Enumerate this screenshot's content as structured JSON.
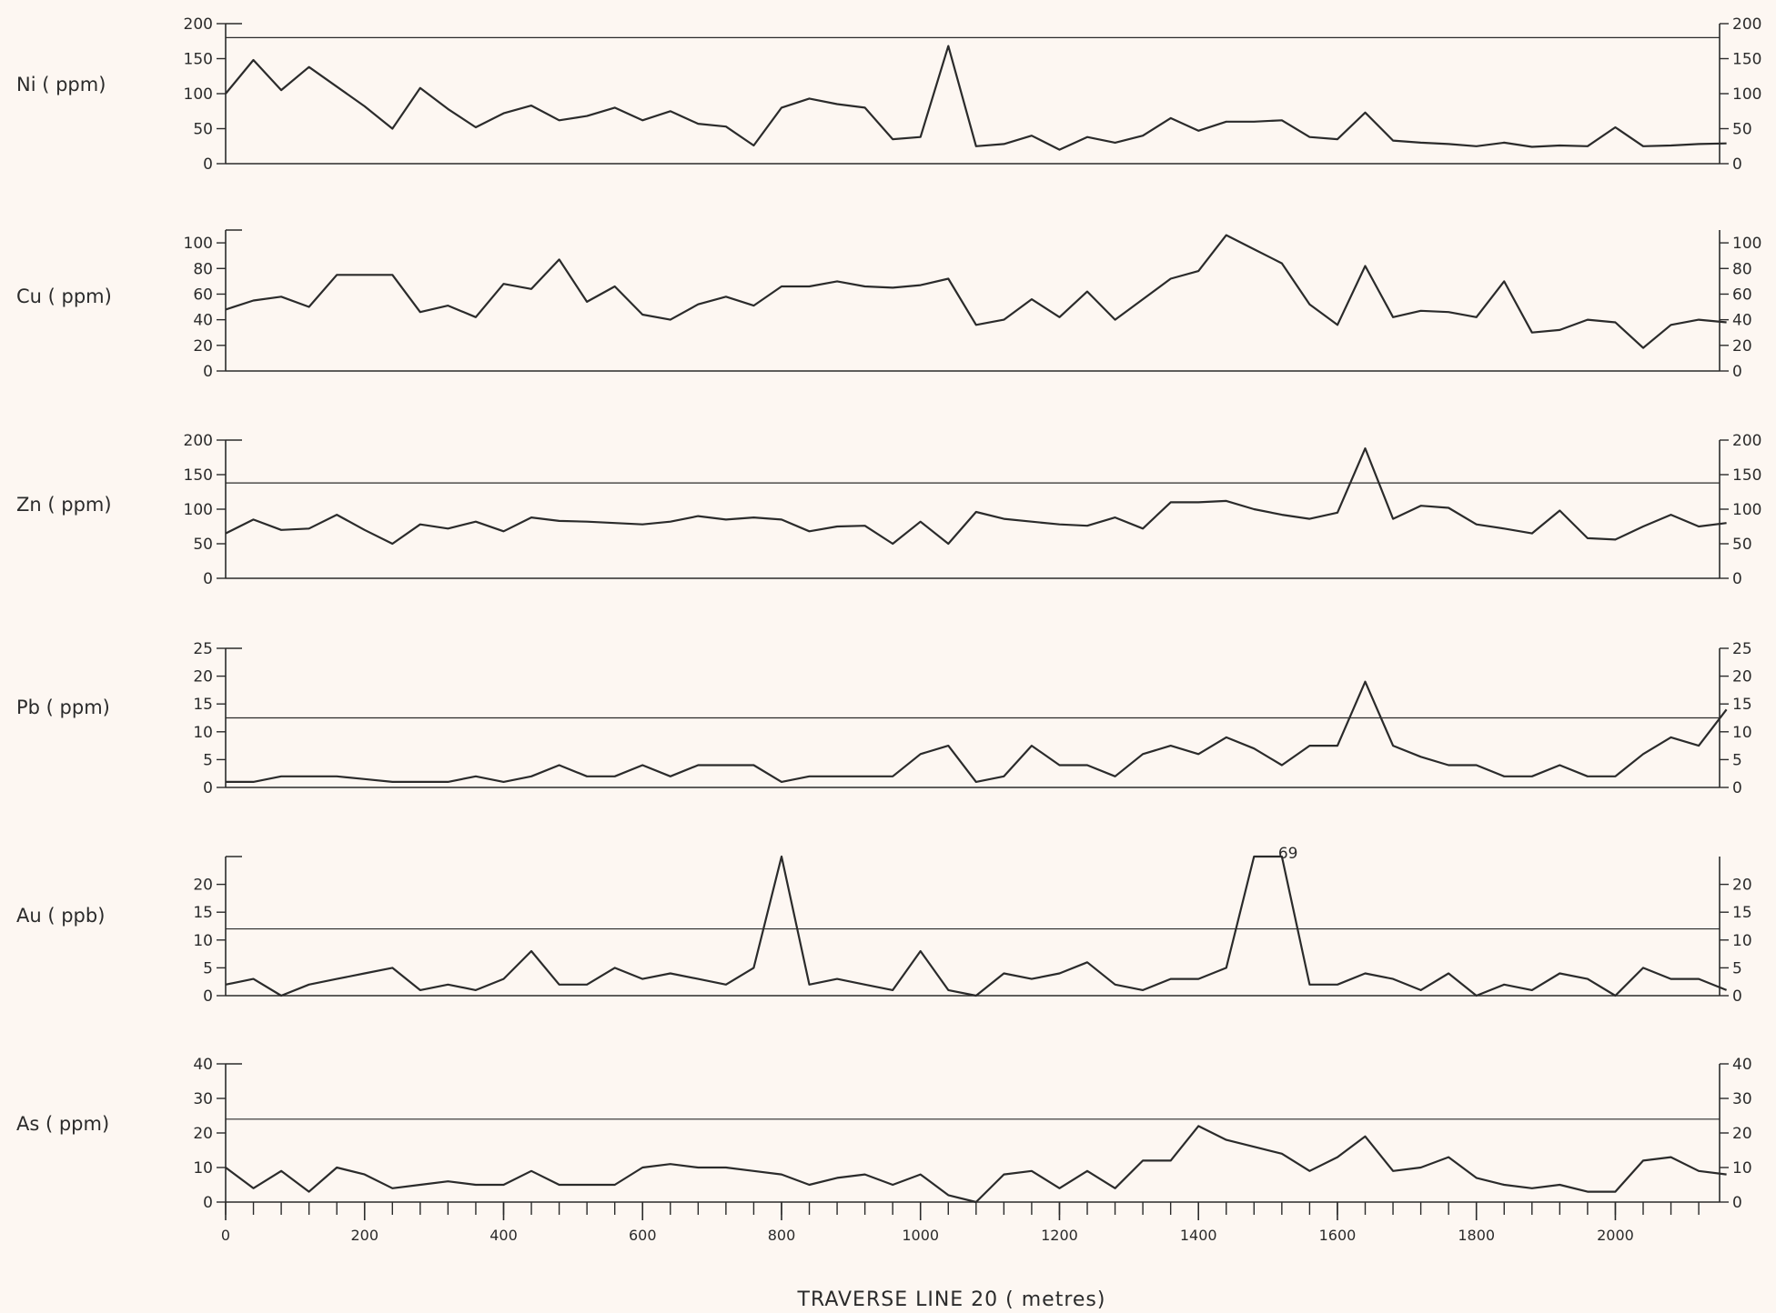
{
  "page": {
    "background": "#fdf7f2",
    "ink": "#2b2b2b"
  },
  "x_axis": {
    "title": "TRAVERSE LINE 20 ( metres)",
    "range": [
      0,
      2150
    ],
    "tick_labels": [
      0,
      200,
      400,
      600,
      800,
      1000,
      1200,
      1400,
      1600,
      1800,
      2000
    ],
    "minor_step": 40
  },
  "chart_data": [
    {
      "type": "line",
      "ylabel": "Ni ( ppm)",
      "ylim": [
        0,
        200
      ],
      "yticks": [
        0,
        50,
        100,
        150,
        200
      ],
      "reference_line": 180,
      "x": [
        0,
        40,
        80,
        120,
        160,
        200,
        240,
        280,
        320,
        360,
        400,
        440,
        480,
        520,
        560,
        600,
        640,
        680,
        720,
        760,
        800,
        840,
        880,
        920,
        960,
        1000,
        1040,
        1080,
        1120,
        1160,
        1200,
        1240,
        1280,
        1320,
        1360,
        1400,
        1440,
        1480,
        1520,
        1560,
        1600,
        1640,
        1680,
        1720,
        1760,
        1800,
        1840,
        1880,
        1920,
        1960,
        2000,
        2040,
        2080,
        2120,
        2160
      ],
      "values": [
        100,
        148,
        105,
        138,
        110,
        82,
        50,
        108,
        78,
        52,
        72,
        83,
        62,
        68,
        80,
        62,
        75,
        57,
        53,
        26,
        80,
        93,
        85,
        80,
        35,
        38,
        168,
        25,
        28,
        40,
        20,
        38,
        30,
        40,
        65,
        47,
        60,
        60,
        62,
        38,
        35,
        73,
        33,
        30,
        28,
        25,
        30,
        24,
        26,
        25,
        52,
        25,
        26,
        28,
        29
      ]
    },
    {
      "type": "line",
      "ylabel": "Cu ( ppm)",
      "ylim": [
        0,
        110
      ],
      "yticks": [
        0,
        20,
        40,
        60,
        80,
        100
      ],
      "x": [
        0,
        40,
        80,
        120,
        160,
        200,
        240,
        280,
        320,
        360,
        400,
        440,
        480,
        520,
        560,
        600,
        640,
        680,
        720,
        760,
        800,
        840,
        880,
        920,
        960,
        1000,
        1040,
        1080,
        1120,
        1160,
        1200,
        1240,
        1280,
        1320,
        1360,
        1400,
        1440,
        1480,
        1520,
        1560,
        1600,
        1640,
        1680,
        1720,
        1760,
        1800,
        1840,
        1880,
        1920,
        1960,
        2000,
        2040,
        2080,
        2120,
        2160
      ],
      "values": [
        48,
        55,
        58,
        50,
        75,
        75,
        75,
        46,
        51,
        42,
        68,
        64,
        87,
        54,
        66,
        44,
        40,
        52,
        58,
        51,
        66,
        66,
        70,
        66,
        65,
        67,
        72,
        36,
        40,
        56,
        42,
        62,
        40,
        56,
        72,
        78,
        106,
        95,
        84,
        52,
        36,
        82,
        42,
        47,
        46,
        42,
        70,
        30,
        32,
        40,
        38,
        18,
        36,
        40,
        38
      ]
    },
    {
      "type": "line",
      "ylabel": "Zn ( ppm)",
      "ylim": [
        0,
        200
      ],
      "yticks": [
        0,
        50,
        100,
        150,
        200
      ],
      "reference_line": 138,
      "x": [
        0,
        40,
        80,
        120,
        160,
        200,
        240,
        280,
        320,
        360,
        400,
        440,
        480,
        520,
        560,
        600,
        640,
        680,
        720,
        760,
        800,
        840,
        880,
        920,
        960,
        1000,
        1040,
        1080,
        1120,
        1160,
        1200,
        1240,
        1280,
        1320,
        1360,
        1400,
        1440,
        1480,
        1520,
        1560,
        1600,
        1640,
        1680,
        1720,
        1760,
        1800,
        1840,
        1880,
        1920,
        1960,
        2000,
        2040,
        2080,
        2120,
        2160
      ],
      "values": [
        65,
        85,
        70,
        72,
        92,
        70,
        50,
        78,
        72,
        82,
        68,
        88,
        83,
        82,
        80,
        78,
        82,
        90,
        85,
        88,
        85,
        68,
        75,
        76,
        50,
        82,
        50,
        96,
        86,
        82,
        78,
        76,
        88,
        72,
        110,
        110,
        112,
        100,
        92,
        86,
        95,
        188,
        86,
        105,
        102,
        78,
        72,
        65,
        98,
        58,
        56,
        75,
        92,
        75,
        80
      ]
    },
    {
      "type": "line",
      "ylabel": "Pb ( ppm)",
      "ylim": [
        0,
        25
      ],
      "yticks": [
        0,
        5,
        10,
        15,
        20,
        25
      ],
      "reference_line": 12.5,
      "x": [
        0,
        40,
        80,
        120,
        160,
        200,
        240,
        280,
        320,
        360,
        400,
        440,
        480,
        520,
        560,
        600,
        640,
        680,
        720,
        760,
        800,
        840,
        880,
        920,
        960,
        1000,
        1040,
        1080,
        1120,
        1160,
        1200,
        1240,
        1280,
        1320,
        1360,
        1400,
        1440,
        1480,
        1520,
        1560,
        1600,
        1640,
        1680,
        1720,
        1760,
        1800,
        1840,
        1880,
        1920,
        1960,
        2000,
        2040,
        2080,
        2120,
        2160
      ],
      "values": [
        1,
        1,
        2,
        2,
        2,
        1.5,
        1,
        1,
        1,
        2,
        1,
        2,
        4,
        2,
        2,
        4,
        2,
        4,
        4,
        4,
        1,
        2,
        2,
        2,
        2,
        6,
        7.5,
        1,
        2,
        7.5,
        4,
        4,
        2,
        6,
        7.5,
        6,
        9,
        7,
        4,
        7.5,
        7.5,
        19,
        7.5,
        5.5,
        4,
        4,
        2,
        2,
        4,
        2,
        2,
        6,
        9,
        7.5,
        14
      ]
    },
    {
      "type": "line",
      "ylabel": "Au ( ppb)",
      "ylim": [
        0,
        25
      ],
      "yticks": [
        0,
        5,
        10,
        15,
        20
      ],
      "reference_line": 12,
      "x": [
        0,
        40,
        80,
        120,
        160,
        200,
        240,
        280,
        320,
        360,
        400,
        440,
        480,
        520,
        560,
        600,
        640,
        680,
        720,
        760,
        800,
        840,
        880,
        920,
        960,
        1000,
        1040,
        1080,
        1120,
        1160,
        1200,
        1240,
        1280,
        1320,
        1360,
        1400,
        1440,
        1480,
        1520,
        1560,
        1600,
        1640,
        1680,
        1720,
        1760,
        1800,
        1840,
        1880,
        1920,
        1960,
        2000,
        2040,
        2080,
        2120,
        2160
      ],
      "values": [
        2,
        3,
        0,
        2,
        3,
        4,
        5,
        1,
        2,
        1,
        3,
        8,
        2,
        2,
        5,
        3,
        4,
        3,
        2,
        5,
        25,
        2,
        3,
        2,
        1,
        8,
        1,
        0,
        4,
        3,
        4,
        6,
        2,
        1,
        3,
        3,
        5,
        25,
        25,
        2,
        2,
        4,
        3,
        1,
        4,
        0,
        2,
        1,
        4,
        3,
        0,
        5,
        3,
        3,
        1
      ],
      "annotations": [
        {
          "x": 1520,
          "text": "69"
        }
      ]
    },
    {
      "type": "line",
      "ylabel": "As ( ppm)",
      "ylim": [
        0,
        40
      ],
      "yticks": [
        0,
        10,
        20,
        30,
        40
      ],
      "reference_line": 24,
      "x": [
        0,
        40,
        80,
        120,
        160,
        200,
        240,
        280,
        320,
        360,
        400,
        440,
        480,
        520,
        560,
        600,
        640,
        680,
        720,
        760,
        800,
        840,
        880,
        920,
        960,
        1000,
        1040,
        1080,
        1120,
        1160,
        1200,
        1240,
        1280,
        1320,
        1360,
        1400,
        1440,
        1480,
        1520,
        1560,
        1600,
        1640,
        1680,
        1720,
        1760,
        1800,
        1840,
        1880,
        1920,
        1960,
        2000,
        2040,
        2080,
        2120,
        2160
      ],
      "values": [
        10,
        4,
        9,
        3,
        10,
        8,
        4,
        5,
        6,
        5,
        5,
        9,
        5,
        5,
        5,
        10,
        11,
        10,
        10,
        9,
        8,
        5,
        7,
        8,
        5,
        8,
        2,
        0,
        8,
        9,
        4,
        9,
        4,
        12,
        12,
        22,
        18,
        16,
        14,
        9,
        13,
        19,
        9,
        10,
        13,
        7,
        5,
        4,
        5,
        3,
        3,
        12,
        13,
        9,
        8
      ]
    }
  ]
}
